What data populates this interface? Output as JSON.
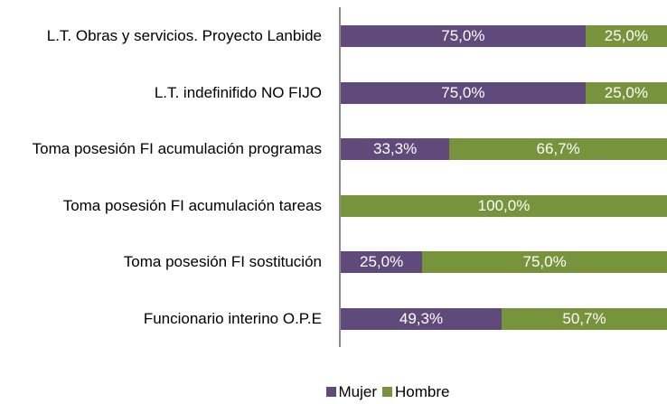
{
  "chart_data": {
    "type": "stacked-bar-horizontal",
    "categories": [
      "L.T. Obras y servicios. Proyecto Lanbide",
      "L.T. indefinifido NO FIJO",
      "Toma posesión FI acumulación programas",
      "Toma posesión FI acumulación tareas",
      "Toma posesión FI sostitución",
      "Funcionario interino O.P.E"
    ],
    "series": [
      {
        "name": "Mujer",
        "color": "#604a7b",
        "values": [
          75,
          75,
          33.3,
          0,
          25,
          49.3
        ],
        "value_labels": [
          "75,0%",
          "75,0%",
          "33,3%",
          null,
          "25,0%",
          "49,3%"
        ]
      },
      {
        "name": "Hombre",
        "color": "#77933c",
        "values": [
          25,
          25,
          66.7,
          100,
          75,
          50.7
        ],
        "value_labels": [
          "25,0%",
          "25,0%",
          "66,7%",
          "100,0%",
          "75,0%",
          "50,7%"
        ]
      }
    ],
    "xlim": [
      0,
      100
    ],
    "legend": "bottom"
  }
}
